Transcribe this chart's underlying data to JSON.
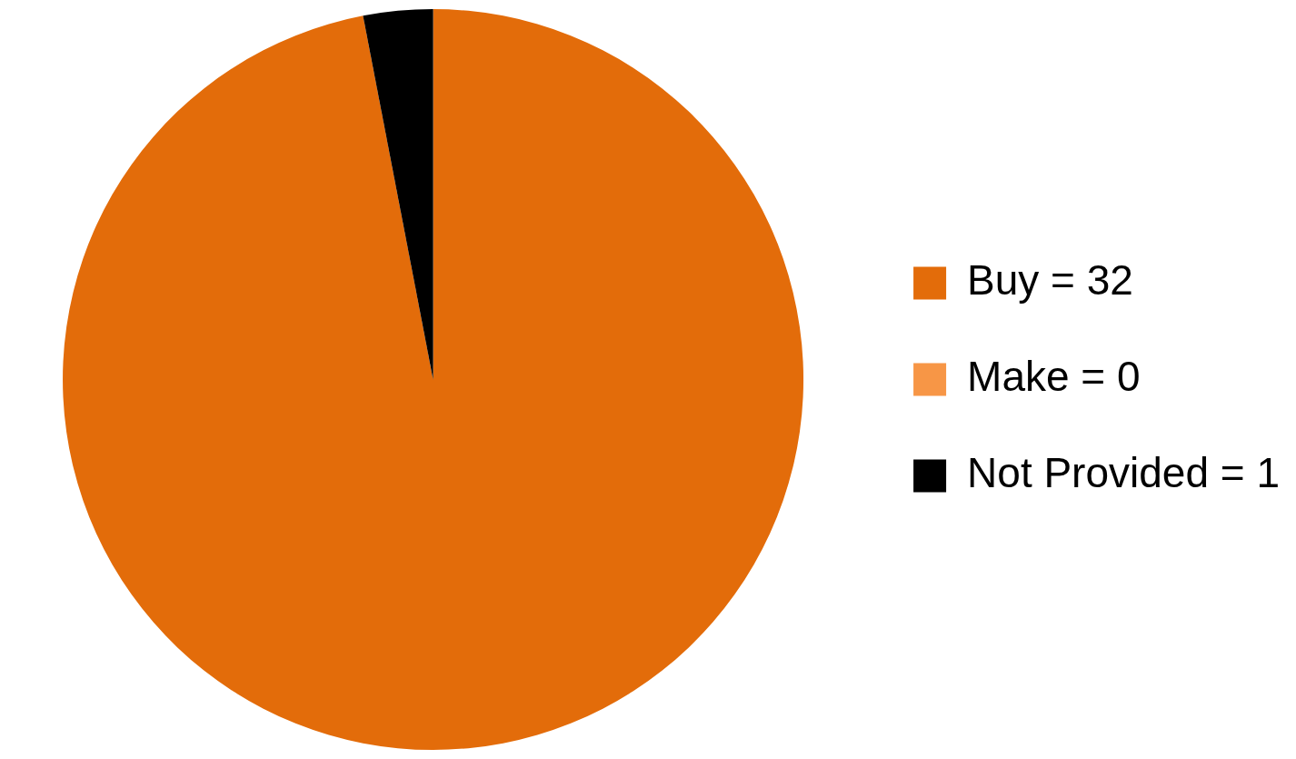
{
  "chart_data": {
    "type": "pie",
    "categories": [
      "Buy = 32",
      "Make = 0",
      "Not Provided = 1"
    ],
    "values": [
      32,
      0,
      1
    ],
    "colors": [
      "#e36c0a",
      "#f79646",
      "#000000"
    ],
    "legend": "right"
  }
}
